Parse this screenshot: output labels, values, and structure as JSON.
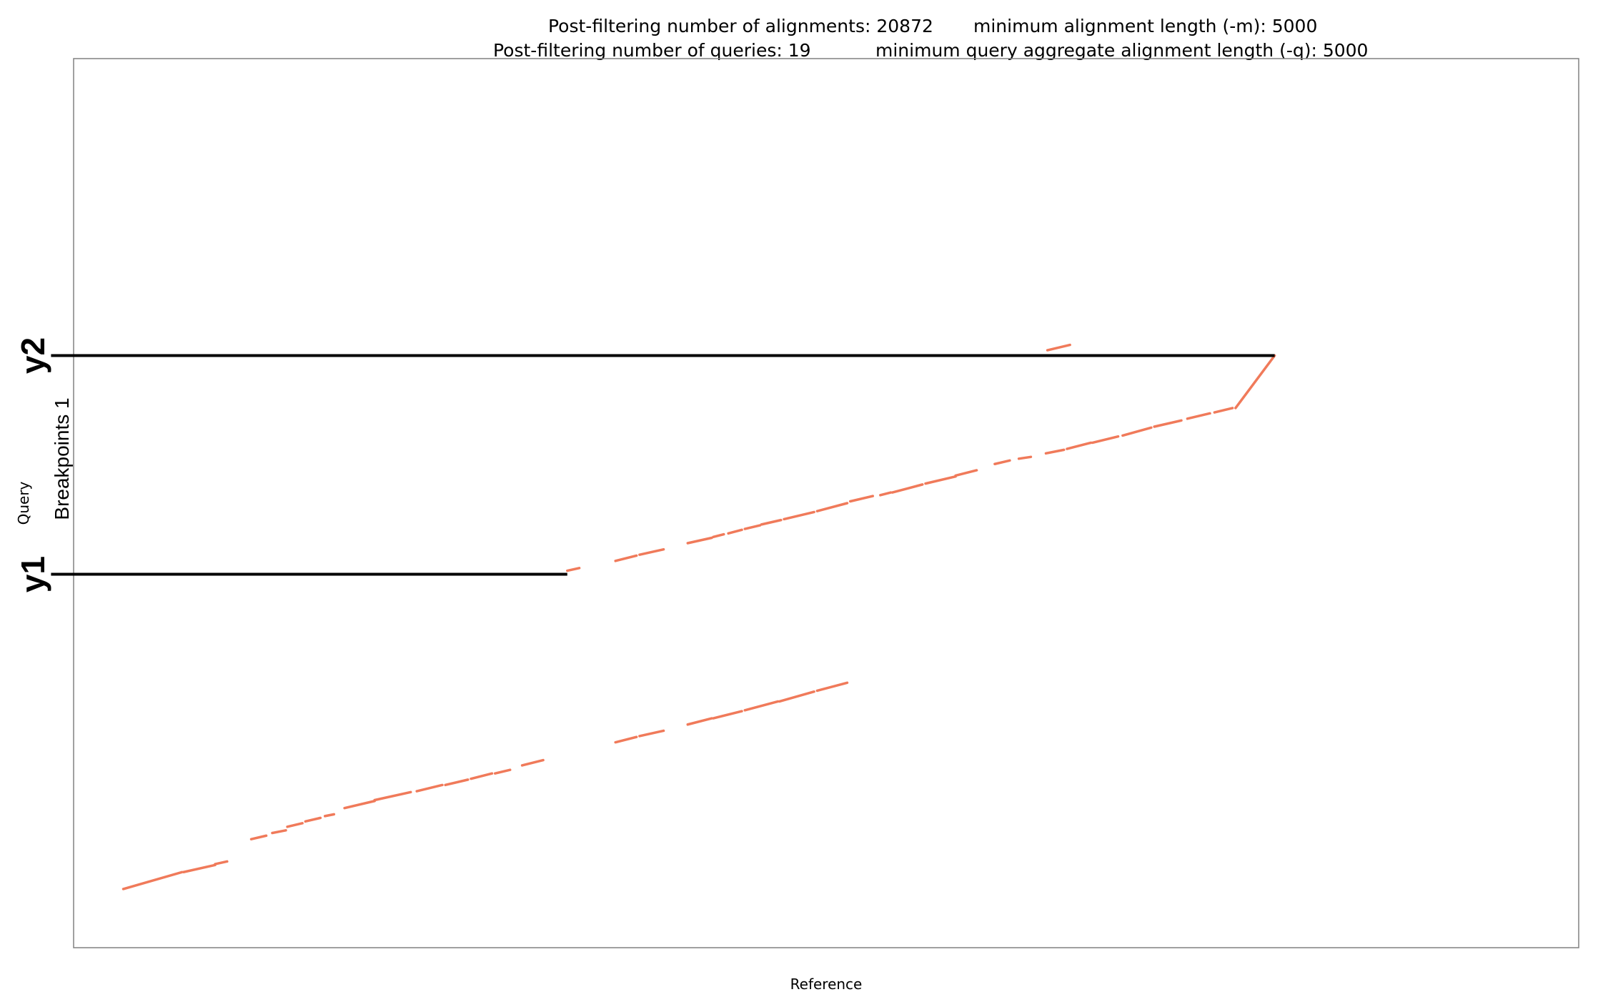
{
  "header": {
    "line1_left": "Post-filtering number of alignments: 20872",
    "line1_right": "minimum alignment length (-m): 5000",
    "line2_left": "Post-filtering number of queries: 19",
    "line2_right": "minimum query aggregate alignment length (-q): 5000"
  },
  "colors": {
    "alignment": "#f07a5a",
    "breakpoint": "#000000",
    "frame": "#808080"
  },
  "chart_data": {
    "type": "scatter",
    "xlabel": "Reference",
    "ylabel": "Query",
    "breakpoint_label": "Breakpoints 1",
    "xlim": [
      0,
      1000
    ],
    "ylim": [
      0,
      1000
    ],
    "grid": false,
    "breakpoints": [
      {
        "label": "y1",
        "y": 420,
        "x_start": -15,
        "x_end": 328
      },
      {
        "label": "y2",
        "y": 666,
        "x_start": -15,
        "x_end": 798
      }
    ],
    "segments": [
      [
        [
          33,
          66
        ],
        [
          72,
          85
        ]
      ],
      [
        [
          73,
          85
        ],
        [
          94,
          93
        ]
      ],
      [
        [
          94,
          94
        ],
        [
          102,
          97
        ]
      ],
      [
        [
          118,
          122
        ],
        [
          128,
          126
        ]
      ],
      [
        [
          132,
          129
        ],
        [
          141,
          132
        ]
      ],
      [
        [
          142,
          136
        ],
        [
          152,
          140
        ]
      ],
      [
        [
          154,
          142
        ],
        [
          164,
          146
        ]
      ],
      [
        [
          167,
          148
        ],
        [
          173,
          150
        ]
      ],
      [
        [
          180,
          157
        ],
        [
          200,
          165
        ]
      ],
      [
        [
          200,
          166
        ],
        [
          224,
          175
        ]
      ],
      [
        [
          228,
          176
        ],
        [
          245,
          183
        ]
      ],
      [
        [
          247,
          183
        ],
        [
          262,
          189
        ]
      ],
      [
        [
          264,
          190
        ],
        [
          278,
          196
        ]
      ],
      [
        [
          280,
          196
        ],
        [
          290,
          200
        ]
      ],
      [
        [
          298,
          205
        ],
        [
          312,
          211
        ]
      ],
      [
        [
          360,
          231
        ],
        [
          374,
          237
        ]
      ],
      [
        [
          376,
          238
        ],
        [
          392,
          244
        ]
      ],
      [
        [
          408,
          251
        ],
        [
          424,
          258
        ]
      ],
      [
        [
          425,
          258
        ],
        [
          444,
          266
        ]
      ],
      [
        [
          446,
          267
        ],
        [
          468,
          277
        ]
      ],
      [
        [
          469,
          277
        ],
        [
          492,
          288
        ]
      ],
      [
        [
          494,
          289
        ],
        [
          514,
          298
        ]
      ],
      [
        [
          328,
          424
        ],
        [
          336,
          427
        ]
      ],
      [
        [
          360,
          435
        ],
        [
          374,
          441
        ]
      ],
      [
        [
          376,
          442
        ],
        [
          392,
          448
        ]
      ],
      [
        [
          408,
          455
        ],
        [
          424,
          461
        ]
      ],
      [
        [
          425,
          462
        ],
        [
          432,
          465
        ]
      ],
      [
        [
          435,
          466
        ],
        [
          444,
          470
        ]
      ],
      [
        [
          446,
          471
        ],
        [
          456,
          475
        ]
      ],
      [
        [
          457,
          476
        ],
        [
          470,
          481
        ]
      ],
      [
        [
          472,
          482
        ],
        [
          492,
          490
        ]
      ],
      [
        [
          494,
          491
        ],
        [
          514,
          500
        ]
      ],
      [
        [
          516,
          502
        ],
        [
          531,
          508
        ]
      ],
      [
        [
          536,
          509
        ],
        [
          543,
          512
        ]
      ],
      [
        [
          544,
          512
        ],
        [
          564,
          521
        ]
      ],
      [
        [
          566,
          522
        ],
        [
          586,
          530
        ]
      ],
      [
        [
          586,
          531
        ],
        [
          600,
          537
        ]
      ],
      [
        [
          612,
          544
        ],
        [
          622,
          548
        ]
      ],
      [
        [
          628,
          550
        ],
        [
          636,
          552
        ]
      ],
      [
        [
          646,
          556
        ],
        [
          658,
          560
        ]
      ],
      [
        [
          660,
          561
        ],
        [
          676,
          568
        ]
      ],
      [
        [
          677,
          568
        ],
        [
          694,
          575
        ]
      ],
      [
        [
          697,
          576
        ],
        [
          716,
          585
        ]
      ],
      [
        [
          718,
          586
        ],
        [
          736,
          593
        ]
      ],
      [
        [
          740,
          595
        ],
        [
          755,
          601
        ]
      ],
      [
        [
          758,
          602
        ],
        [
          770,
          607
        ]
      ],
      [
        [
          772,
          607
        ],
        [
          798,
          666
        ]
      ],
      [
        [
          647,
          672
        ],
        [
          662,
          678
        ]
      ]
    ]
  }
}
